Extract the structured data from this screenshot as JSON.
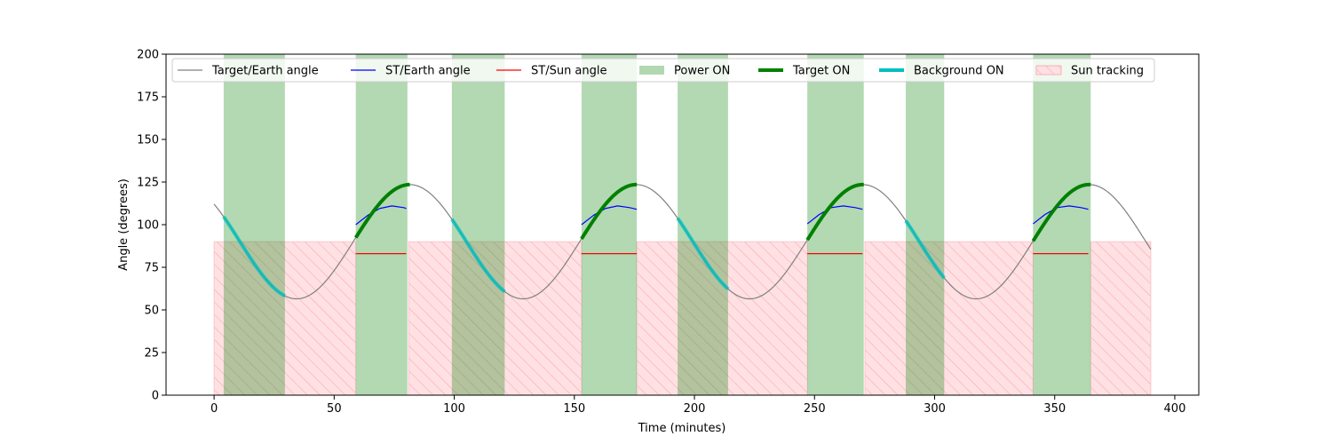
{
  "chart_data": {
    "type": "line",
    "xlabel": "Time (minutes)",
    "ylabel": "Angle (degrees)",
    "xlim": [
      -20,
      410
    ],
    "ylim": [
      0,
      200
    ],
    "x_ticks": [
      0,
      50,
      100,
      150,
      200,
      250,
      300,
      350,
      400
    ],
    "y_ticks": [
      0,
      25,
      50,
      75,
      100,
      125,
      150,
      175,
      200
    ],
    "legend_position": "top, inside plot, single row",
    "legend": [
      {
        "label": "Target/Earth angle",
        "kind": "line",
        "color": "#808080"
      },
      {
        "label": "ST/Earth angle",
        "kind": "line",
        "color": "#0000ff"
      },
      {
        "label": "ST/Sun angle",
        "kind": "line",
        "color": "#ff0000"
      },
      {
        "label": "Power ON",
        "kind": "patch",
        "color": "#b2d8b2"
      },
      {
        "label": "Target ON",
        "kind": "thickline",
        "color": "#008000"
      },
      {
        "label": "Background ON",
        "kind": "thickline",
        "color": "#00bfbf"
      },
      {
        "label": "Sun tracking",
        "kind": "hatch",
        "color": "#ffe0e3"
      }
    ],
    "target_earth_angle": {
      "name": "Target/Earth angle",
      "x_range": [
        0,
        390
      ],
      "mean": 90,
      "amplitude": 33.5,
      "period_min": 94.3,
      "peak_time_min": 81.5
    },
    "power_on_intervals": [
      [
        4,
        29.5
      ],
      [
        59,
        80.5
      ],
      [
        99,
        121
      ],
      [
        153,
        176
      ],
      [
        193,
        214
      ],
      [
        247,
        270.5
      ],
      [
        288,
        304
      ],
      [
        341,
        365
      ]
    ],
    "sun_tracking": {
      "intervals": [
        [
          0,
          59
        ],
        [
          81,
          153
        ],
        [
          176,
          247
        ],
        [
          271,
          341
        ],
        [
          365,
          390
        ]
      ],
      "angle": 90
    },
    "st_sun_angle": {
      "name": "ST/Sun angle",
      "segments": [
        {
          "x": [
            59,
            80
          ],
          "y": 83
        },
        {
          "x": [
            153,
            176
          ],
          "y": 83
        },
        {
          "x": [
            247,
            270
          ],
          "y": 83
        },
        {
          "x": [
            341,
            364
          ],
          "y": 83
        }
      ]
    },
    "st_earth_angle": {
      "name": "ST/Earth angle",
      "segments": [
        {
          "x": [
            59,
            64,
            69,
            74,
            79,
            80
          ],
          "y": [
            100,
            105.5,
            109.5,
            111,
            110,
            109.5
          ]
        },
        {
          "x": [
            153,
            158,
            163,
            168,
            173,
            176
          ],
          "y": [
            100,
            105.5,
            109.5,
            111,
            110,
            109
          ]
        },
        {
          "x": [
            247,
            252,
            257,
            262,
            267,
            270
          ],
          "y": [
            100.5,
            106,
            110,
            111,
            110,
            109
          ]
        },
        {
          "x": [
            341,
            346,
            351,
            356,
            361,
            364
          ],
          "y": [
            100.5,
            106,
            110,
            111,
            110,
            109
          ]
        }
      ]
    },
    "target_on_intervals": [
      [
        59,
        81.5
      ],
      [
        153,
        176
      ],
      [
        247,
        270.5
      ],
      [
        341,
        365
      ]
    ],
    "background_on_intervals": [
      [
        4,
        29.5
      ],
      [
        99,
        121
      ],
      [
        193,
        214
      ],
      [
        288,
        304
      ]
    ]
  }
}
